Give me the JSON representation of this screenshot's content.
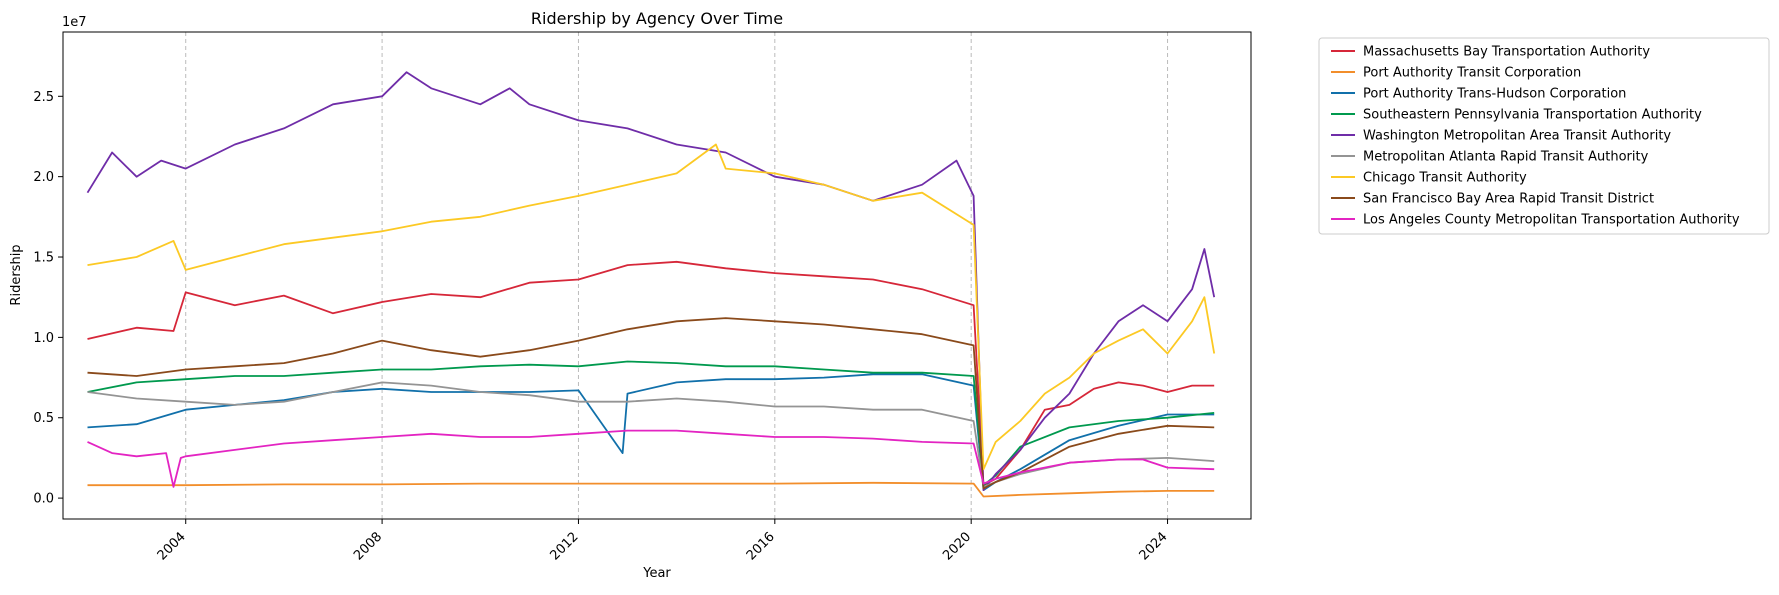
{
  "chart_data": {
    "type": "line",
    "title": "Ridership by Agency Over Time",
    "xlabel": "Year",
    "ylabel": "Ridership",
    "y_exponent_label": "1e7",
    "y_scale_multiplier": 10000000,
    "xlim": [
      2001.5,
      2025.7
    ],
    "ylim": [
      -0.13,
      2.9
    ],
    "x_ticks": [
      2004,
      2008,
      2012,
      2016,
      2020,
      2024
    ],
    "x_tick_labels": [
      "2004",
      "2008",
      "2012",
      "2016",
      "2020",
      "2024"
    ],
    "y_ticks": [
      0.0,
      0.5,
      1.0,
      1.5,
      2.0,
      2.5
    ],
    "y_tick_labels": [
      "0.0",
      "0.5",
      "1.0",
      "1.5",
      "2.0",
      "2.5"
    ],
    "grid": {
      "x": true,
      "y": false,
      "style": "dashed",
      "color": "#bbbbbb"
    },
    "legend_position": "outside-right-top",
    "series": [
      {
        "name": "Massachusetts Bay Transportation Authority",
        "color": "#d62739",
        "x": [
          2002,
          2003,
          2003.75,
          2004,
          2005,
          2006,
          2007,
          2008,
          2009,
          2010,
          2011,
          2012,
          2013,
          2014,
          2015,
          2016,
          2017,
          2018,
          2019,
          2020.05,
          2020.25,
          2020.5,
          2021,
          2021.5,
          2022,
          2022.5,
          2023,
          2023.5,
          2024,
          2024.5,
          2024.95
        ],
        "y": [
          0.99,
          1.06,
          1.04,
          1.28,
          1.2,
          1.26,
          1.15,
          1.22,
          1.27,
          1.25,
          1.34,
          1.36,
          1.45,
          1.47,
          1.43,
          1.4,
          1.38,
          1.36,
          1.3,
          1.2,
          0.08,
          0.12,
          0.3,
          0.55,
          0.58,
          0.68,
          0.72,
          0.7,
          0.66,
          0.7,
          0.7
        ]
      },
      {
        "name": "Port Authority Transit Corporation",
        "color": "#f28e2b",
        "x": [
          2002,
          2004,
          2006,
          2008,
          2010,
          2012,
          2014,
          2016,
          2018,
          2020.05,
          2020.25,
          2021,
          2022,
          2023,
          2024,
          2024.95
        ],
        "y": [
          0.08,
          0.08,
          0.085,
          0.085,
          0.09,
          0.09,
          0.09,
          0.09,
          0.095,
          0.09,
          0.01,
          0.02,
          0.03,
          0.04,
          0.045,
          0.045
        ]
      },
      {
        "name": "Port Authority Trans-Hudson Corporation",
        "color": "#1170aa",
        "x": [
          2002,
          2003,
          2004,
          2005,
          2006,
          2007,
          2008,
          2009,
          2010,
          2011,
          2012,
          2012.9,
          2013,
          2014,
          2015,
          2016,
          2017,
          2018,
          2019,
          2020.05,
          2020.25,
          2020.5,
          2021,
          2022,
          2023,
          2024,
          2024.95
        ],
        "y": [
          0.44,
          0.46,
          0.55,
          0.58,
          0.61,
          0.66,
          0.68,
          0.66,
          0.66,
          0.66,
          0.67,
          0.28,
          0.65,
          0.72,
          0.74,
          0.74,
          0.75,
          0.77,
          0.77,
          0.7,
          0.05,
          0.1,
          0.18,
          0.36,
          0.45,
          0.52,
          0.52
        ]
      },
      {
        "name": "Southeastern Pennsylvania Transportation Authority",
        "color": "#00994e",
        "x": [
          2002,
          2003,
          2004,
          2005,
          2006,
          2007,
          2008,
          2009,
          2010,
          2011,
          2012,
          2013,
          2014,
          2015,
          2016,
          2017,
          2018,
          2019,
          2020.05,
          2020.25,
          2020.5,
          2021,
          2022,
          2023,
          2024,
          2024.95
        ],
        "y": [
          0.66,
          0.72,
          0.74,
          0.76,
          0.76,
          0.78,
          0.8,
          0.8,
          0.82,
          0.83,
          0.82,
          0.85,
          0.84,
          0.82,
          0.82,
          0.8,
          0.78,
          0.78,
          0.76,
          0.08,
          0.14,
          0.32,
          0.44,
          0.48,
          0.5,
          0.53
        ]
      },
      {
        "name": "Washington Metropolitan Area Transit Authority",
        "color": "#6f2da8",
        "x": [
          2002,
          2002.5,
          2003,
          2003.5,
          2004,
          2005,
          2006,
          2007,
          2008,
          2008.5,
          2009,
          2010,
          2010.6,
          2011,
          2012,
          2013,
          2014,
          2015,
          2016,
          2017,
          2018,
          2019,
          2019.7,
          2020.05,
          2020.25,
          2020.5,
          2021,
          2021.5,
          2022,
          2022.5,
          2023,
          2023.5,
          2024,
          2024.5,
          2024.75,
          2024.95
        ],
        "y": [
          1.9,
          2.15,
          2.0,
          2.1,
          2.05,
          2.2,
          2.3,
          2.45,
          2.5,
          2.65,
          2.55,
          2.45,
          2.55,
          2.45,
          2.35,
          2.3,
          2.2,
          2.15,
          2.0,
          1.95,
          1.85,
          1.95,
          2.1,
          1.88,
          0.05,
          0.15,
          0.3,
          0.5,
          0.65,
          0.9,
          1.1,
          1.2,
          1.1,
          1.3,
          1.55,
          1.25
        ]
      },
      {
        "name": "Metropolitan Atlanta Rapid Transit Authority",
        "color": "#949494",
        "x": [
          2002,
          2003,
          2004,
          2005,
          2006,
          2007,
          2008,
          2009,
          2010,
          2011,
          2012,
          2013,
          2014,
          2015,
          2016,
          2017,
          2018,
          2019,
          2020.05,
          2020.25,
          2020.5,
          2021,
          2022,
          2023,
          2024,
          2024.95
        ],
        "y": [
          0.66,
          0.62,
          0.6,
          0.58,
          0.6,
          0.66,
          0.72,
          0.7,
          0.66,
          0.64,
          0.6,
          0.6,
          0.62,
          0.6,
          0.57,
          0.57,
          0.55,
          0.55,
          0.48,
          0.07,
          0.1,
          0.15,
          0.22,
          0.24,
          0.25,
          0.23
        ]
      },
      {
        "name": "Chicago Transit Authority",
        "color": "#fcc924",
        "x": [
          2002,
          2003,
          2003.75,
          2004,
          2005,
          2006,
          2007,
          2008,
          2009,
          2010,
          2011,
          2012,
          2013,
          2014,
          2014.8,
          2015,
          2016,
          2017,
          2018,
          2019,
          2020.05,
          2020.25,
          2020.5,
          2021,
          2021.5,
          2022,
          2022.5,
          2023,
          2023.5,
          2024,
          2024.5,
          2024.75,
          2024.95
        ],
        "y": [
          1.45,
          1.5,
          1.6,
          1.42,
          1.5,
          1.58,
          1.62,
          1.66,
          1.72,
          1.75,
          1.82,
          1.88,
          1.95,
          2.02,
          2.2,
          2.05,
          2.02,
          1.95,
          1.85,
          1.9,
          1.7,
          0.18,
          0.35,
          0.48,
          0.65,
          0.75,
          0.9,
          0.98,
          1.05,
          0.9,
          1.1,
          1.25,
          0.9
        ]
      },
      {
        "name": "San Francisco Bay Area Rapid Transit District",
        "color": "#8a4a1b",
        "x": [
          2002,
          2003,
          2004,
          2005,
          2006,
          2007,
          2008,
          2009,
          2010,
          2011,
          2012,
          2013,
          2014,
          2015,
          2016,
          2017,
          2018,
          2019,
          2020.05,
          2020.25,
          2020.5,
          2021,
          2022,
          2023,
          2024,
          2024.95
        ],
        "y": [
          0.78,
          0.76,
          0.8,
          0.82,
          0.84,
          0.9,
          0.98,
          0.92,
          0.88,
          0.92,
          0.98,
          1.05,
          1.1,
          1.12,
          1.1,
          1.08,
          1.05,
          1.02,
          0.95,
          0.06,
          0.1,
          0.16,
          0.32,
          0.4,
          0.45,
          0.44
        ]
      },
      {
        "name": "Los Angeles County Metropolitan Transportation Authority",
        "color": "#e324c2",
        "x": [
          2002,
          2002.5,
          2003,
          2003.6,
          2003.75,
          2003.9,
          2004,
          2005,
          2006,
          2007,
          2008,
          2009,
          2010,
          2011,
          2012,
          2013,
          2014,
          2015,
          2016,
          2017,
          2018,
          2019,
          2020.05,
          2020.25,
          2020.5,
          2021,
          2022,
          2023,
          2023.5,
          2024,
          2024.95
        ],
        "y": [
          0.35,
          0.28,
          0.26,
          0.28,
          0.07,
          0.25,
          0.26,
          0.3,
          0.34,
          0.36,
          0.38,
          0.4,
          0.38,
          0.38,
          0.4,
          0.42,
          0.42,
          0.4,
          0.38,
          0.38,
          0.37,
          0.35,
          0.34,
          0.09,
          0.12,
          0.16,
          0.22,
          0.24,
          0.24,
          0.19,
          0.18
        ]
      }
    ]
  }
}
